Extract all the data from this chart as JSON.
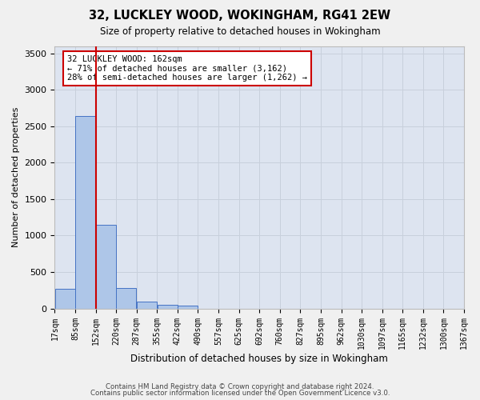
{
  "title1": "32, LUCKLEY WOOD, WOKINGHAM, RG41 2EW",
  "title2": "Size of property relative to detached houses in Wokingham",
  "xlabel": "Distribution of detached houses by size in Wokingham",
  "ylabel": "Number of detached properties",
  "footnote1": "Contains HM Land Registry data © Crown copyright and database right 2024.",
  "footnote2": "Contains public sector information licensed under the Open Government Licence v3.0.",
  "annotation_title": "32 LUCKLEY WOOD: 162sqm",
  "annotation_line1": "← 71% of detached houses are smaller (3,162)",
  "annotation_line2": "28% of semi-detached houses are larger (1,262) →",
  "bar_color": "#aec6e8",
  "bar_edge_color": "#4472c4",
  "vline_color": "#cc0000",
  "tick_labels": [
    "17sqm",
    "85sqm",
    "152sqm",
    "220sqm",
    "287sqm",
    "355sqm",
    "422sqm",
    "490sqm",
    "557sqm",
    "625sqm",
    "692sqm",
    "760sqm",
    "827sqm",
    "895sqm",
    "962sqm",
    "1030sqm",
    "1097sqm",
    "1165sqm",
    "1232sqm",
    "1300sqm",
    "1367sqm"
  ],
  "values": [
    270,
    2640,
    1150,
    280,
    90,
    50,
    40,
    0,
    0,
    0,
    0,
    0,
    0,
    0,
    0,
    0,
    0,
    0,
    0,
    0
  ],
  "ylim": [
    0,
    3600
  ],
  "yticks": [
    0,
    500,
    1000,
    1500,
    2000,
    2500,
    3000,
    3500
  ],
  "grid_color": "#c8d0dc",
  "bg_color": "#dde4f0",
  "fig_bg_color": "#f0f0f0"
}
